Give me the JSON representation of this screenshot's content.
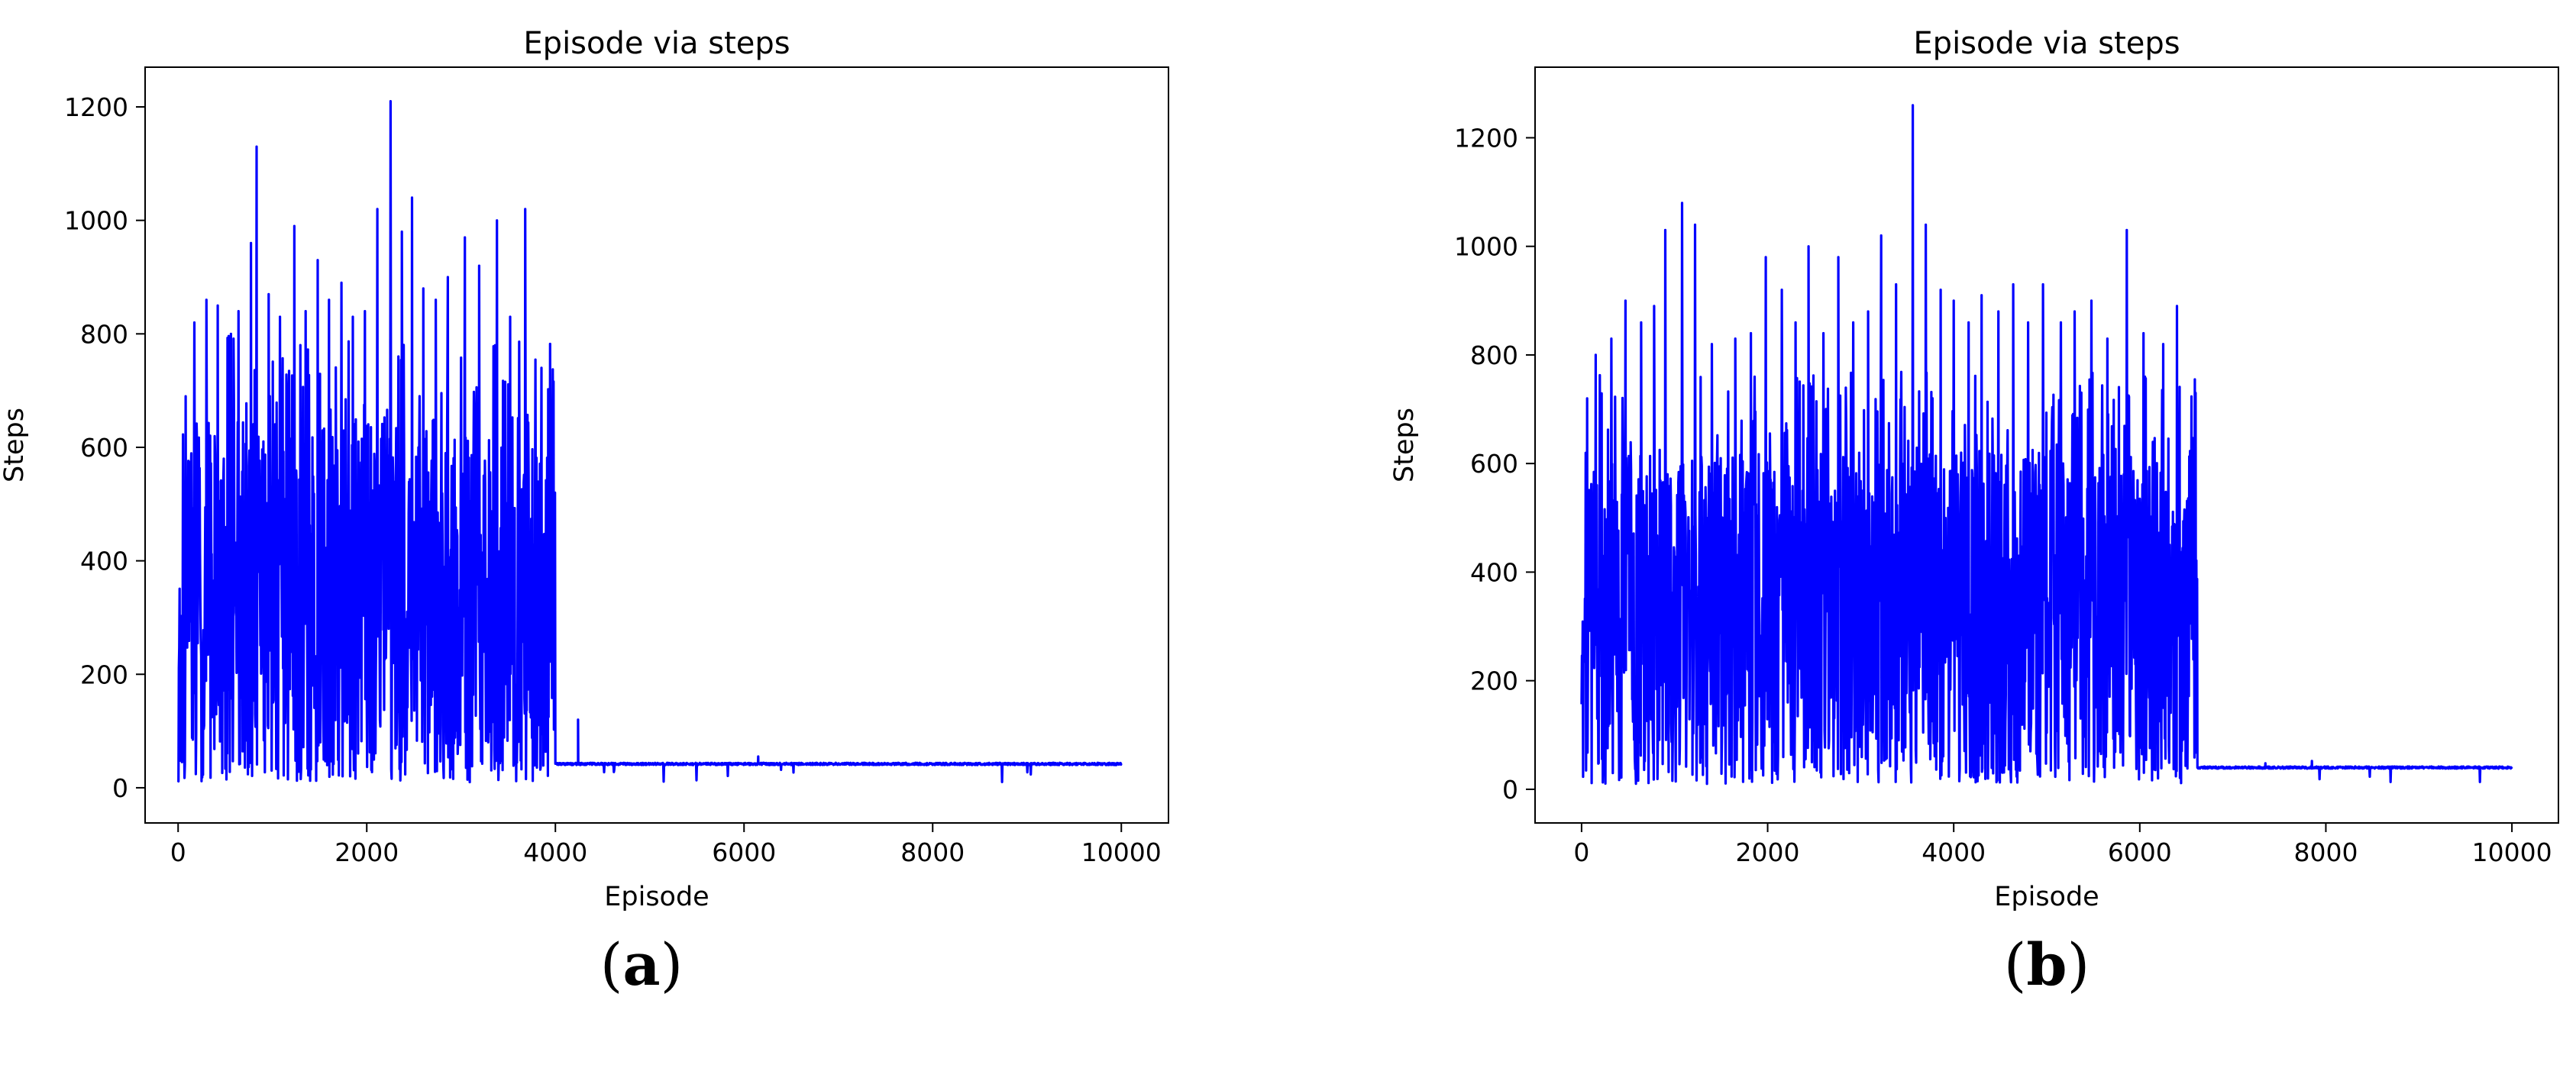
{
  "chart_data": [
    {
      "type": "line",
      "title": "Episode via steps",
      "xlabel": "Episode",
      "ylabel": "Steps",
      "xlim": [
        -350,
        10500
      ],
      "ylim": [
        -62,
        1270
      ],
      "xticks": [
        0,
        2000,
        4000,
        6000,
        8000,
        10000
      ],
      "xtick_labels": [
        "0",
        "2000",
        "4000",
        "6000",
        "8000",
        "10000"
      ],
      "yticks": [
        0,
        200,
        400,
        600,
        800,
        1000,
        1200
      ],
      "ytick_labels": [
        "0",
        "200",
        "400",
        "600",
        "800",
        "1000",
        "1200"
      ],
      "grid": false,
      "caption": "a",
      "series": [
        {
          "color": "#0000ff",
          "volatile_phase_end_episode": 4000,
          "volatile_band_low": 10,
          "volatile_band_high": 650,
          "converged_value": 42,
          "peaks": [
            [
              80,
              690
            ],
            [
              170,
              820
            ],
            [
              300,
              860
            ],
            [
              420,
              850
            ],
            [
              560,
              800
            ],
            [
              640,
              840
            ],
            [
              770,
              960
            ],
            [
              830,
              1130
            ],
            [
              960,
              870
            ],
            [
              1080,
              830
            ],
            [
              1230,
              990
            ],
            [
              1350,
              840
            ],
            [
              1480,
              930
            ],
            [
              1600,
              860
            ],
            [
              1730,
              890
            ],
            [
              1850,
              830
            ],
            [
              1980,
              840
            ],
            [
              2110,
              1020
            ],
            [
              2250,
              1210
            ],
            [
              2370,
              980
            ],
            [
              2480,
              1040
            ],
            [
              2600,
              880
            ],
            [
              2730,
              860
            ],
            [
              2860,
              900
            ],
            [
              3040,
              970
            ],
            [
              3190,
              920
            ],
            [
              3380,
              1000
            ],
            [
              3520,
              830
            ],
            [
              3680,
              1020
            ],
            [
              3850,
              740
            ],
            [
              3960,
              650
            ]
          ],
          "late_spikes": [
            [
              4240,
              120
            ],
            [
              6150,
              55
            ]
          ]
        }
      ]
    },
    {
      "type": "line",
      "title": "Episode via steps",
      "xlabel": "Episode",
      "ylabel": "Steps",
      "xlim": [
        -500,
        10500
      ],
      "ylim": [
        -62,
        1330
      ],
      "xticks": [
        0,
        2000,
        4000,
        6000,
        8000,
        10000
      ],
      "xtick_labels": [
        "0",
        "2000",
        "4000",
        "6000",
        "8000",
        "10000"
      ],
      "yticks": [
        0,
        200,
        400,
        600,
        800,
        1000,
        1200
      ],
      "ytick_labels": [
        "0",
        "200",
        "400",
        "600",
        "800",
        "1000",
        "1200"
      ],
      "grid": false,
      "caption": "b",
      "series": [
        {
          "color": "#0000ff",
          "volatile_phase_end_episode": 6620,
          "volatile_band_low": 10,
          "volatile_band_high": 620,
          "converged_value": 40,
          "peaks": [
            [
              60,
              720
            ],
            [
              150,
              800
            ],
            [
              320,
              830
            ],
            [
              470,
              900
            ],
            [
              640,
              860
            ],
            [
              780,
              890
            ],
            [
              900,
              1030
            ],
            [
              1080,
              1080
            ],
            [
              1220,
              1040
            ],
            [
              1400,
              820
            ],
            [
              1650,
              830
            ],
            [
              1820,
              840
            ],
            [
              1980,
              980
            ],
            [
              2150,
              920
            ],
            [
              2300,
              860
            ],
            [
              2440,
              1000
            ],
            [
              2600,
              840
            ],
            [
              2760,
              980
            ],
            [
              2920,
              860
            ],
            [
              3080,
              880
            ],
            [
              3220,
              1020
            ],
            [
              3380,
              930
            ],
            [
              3560,
              1260
            ],
            [
              3700,
              1040
            ],
            [
              3860,
              920
            ],
            [
              4000,
              900
            ],
            [
              4160,
              860
            ],
            [
              4300,
              910
            ],
            [
              4480,
              880
            ],
            [
              4640,
              930
            ],
            [
              4800,
              860
            ],
            [
              4960,
              930
            ],
            [
              5150,
              860
            ],
            [
              5300,
              880
            ],
            [
              5480,
              900
            ],
            [
              5650,
              830
            ],
            [
              5860,
              1030
            ],
            [
              6040,
              840
            ],
            [
              6250,
              820
            ],
            [
              6400,
              890
            ],
            [
              6600,
              730
            ]
          ],
          "late_spikes": [
            [
              7350,
              48
            ],
            [
              7850,
              52
            ]
          ]
        }
      ]
    }
  ]
}
